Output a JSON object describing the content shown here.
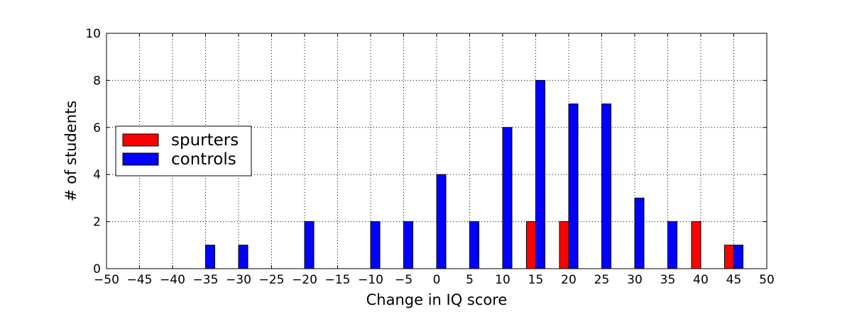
{
  "chart_data": {
    "type": "bar",
    "title": "",
    "xlabel": "Change in IQ score",
    "ylabel": "# of students",
    "xlim": [
      -50,
      50
    ],
    "ylim": [
      0,
      10
    ],
    "xticks": [
      -50,
      -45,
      -40,
      -35,
      -30,
      -25,
      -20,
      -15,
      -10,
      -5,
      0,
      5,
      10,
      15,
      20,
      25,
      30,
      35,
      40,
      45,
      50
    ],
    "yticks": [
      0,
      2,
      4,
      6,
      8,
      10
    ],
    "grid": true,
    "legend_position": "center-left",
    "series": [
      {
        "name": "spurters",
        "color": "#ff0000",
        "x": [
          15,
          20,
          40,
          45
        ],
        "values": [
          2,
          2,
          2,
          1
        ]
      },
      {
        "name": "controls",
        "color": "#0000ff",
        "x": [
          -35,
          -30,
          -20,
          -10,
          -5,
          0,
          5,
          10,
          15,
          20,
          25,
          30,
          35,
          45
        ],
        "values": [
          1,
          1,
          2,
          2,
          2,
          4,
          2,
          6,
          8,
          7,
          7,
          3,
          2,
          1
        ]
      }
    ]
  }
}
